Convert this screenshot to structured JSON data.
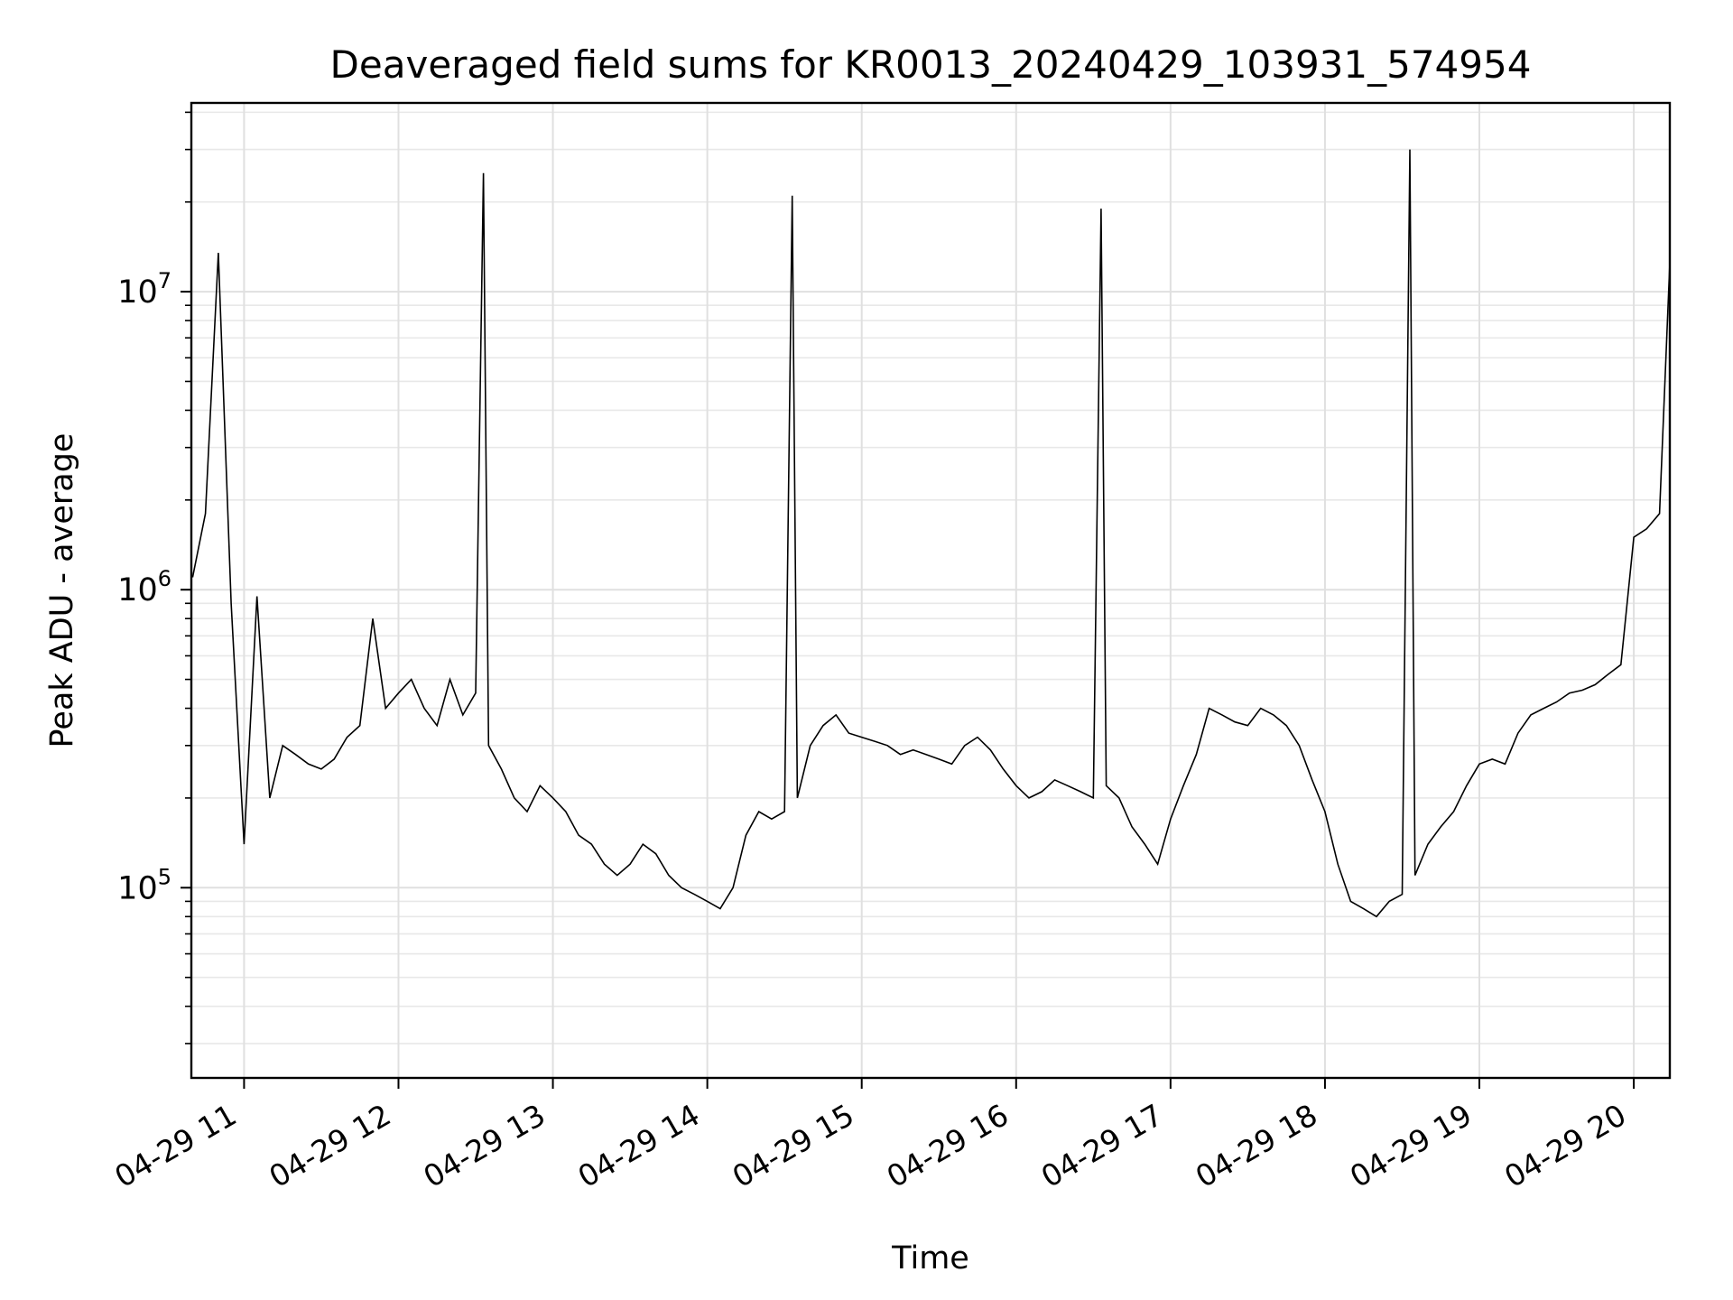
{
  "chart_data": {
    "type": "line",
    "title": "Deaveraged field sums for KR0013_20240429_103931_574954",
    "xlabel": "Time",
    "ylabel": "Peak ADU - average",
    "yscale": "log",
    "ylim": [
      23000,
      43000000
    ],
    "xlim": [
      "04-29 10:39:31",
      "04-29 20:14:00"
    ],
    "grid": true,
    "line_color": "#000000",
    "x_ticks": [
      "04-29 11",
      "04-29 12",
      "04-29 13",
      "04-29 14",
      "04-29 15",
      "04-29 16",
      "04-29 17",
      "04-29 18",
      "04-29 19",
      "04-29 20"
    ],
    "y_ticks": [
      {
        "base": "10",
        "exp": "5",
        "value": 100000
      },
      {
        "base": "10",
        "exp": "6",
        "value": 1000000
      },
      {
        "base": "10",
        "exp": "7",
        "value": 10000000
      }
    ],
    "series": [
      {
        "x": [
          "04-29 10:40",
          "04-29 10:45",
          "04-29 10:50",
          "04-29 10:55",
          "04-29 11:00",
          "04-29 11:05",
          "04-29 11:10",
          "04-29 11:15",
          "04-29 11:20",
          "04-29 11:25",
          "04-29 11:30",
          "04-29 11:35",
          "04-29 11:40",
          "04-29 11:45",
          "04-29 11:50",
          "04-29 11:55",
          "04-29 12:00",
          "04-29 12:05",
          "04-29 12:10",
          "04-29 12:15",
          "04-29 12:20",
          "04-29 12:25",
          "04-29 12:30",
          "04-29 12:33",
          "04-29 12:35",
          "04-29 12:40",
          "04-29 12:45",
          "04-29 12:50",
          "04-29 12:55",
          "04-29 13:00",
          "04-29 13:05",
          "04-29 13:10",
          "04-29 13:15",
          "04-29 13:20",
          "04-29 13:25",
          "04-29 13:30",
          "04-29 13:35",
          "04-29 13:40",
          "04-29 13:45",
          "04-29 13:50",
          "04-29 13:55",
          "04-29 14:00",
          "04-29 14:05",
          "04-29 14:10",
          "04-29 14:15",
          "04-29 14:20",
          "04-29 14:25",
          "04-29 14:30",
          "04-29 14:33",
          "04-29 14:35",
          "04-29 14:40",
          "04-29 14:45",
          "04-29 14:50",
          "04-29 14:55",
          "04-29 15:00",
          "04-29 15:05",
          "04-29 15:10",
          "04-29 15:15",
          "04-29 15:20",
          "04-29 15:25",
          "04-29 15:30",
          "04-29 15:35",
          "04-29 15:40",
          "04-29 15:45",
          "04-29 15:50",
          "04-29 15:55",
          "04-29 16:00",
          "04-29 16:05",
          "04-29 16:10",
          "04-29 16:15",
          "04-29 16:20",
          "04-29 16:25",
          "04-29 16:30",
          "04-29 16:33",
          "04-29 16:35",
          "04-29 16:40",
          "04-29 16:45",
          "04-29 16:50",
          "04-29 16:55",
          "04-29 17:00",
          "04-29 17:05",
          "04-29 17:10",
          "04-29 17:15",
          "04-29 17:20",
          "04-29 17:25",
          "04-29 17:30",
          "04-29 17:35",
          "04-29 17:40",
          "04-29 17:45",
          "04-29 17:50",
          "04-29 17:55",
          "04-29 18:00",
          "04-29 18:05",
          "04-29 18:10",
          "04-29 18:15",
          "04-29 18:20",
          "04-29 18:25",
          "04-29 18:30",
          "04-29 18:33",
          "04-29 18:35",
          "04-29 18:40",
          "04-29 18:45",
          "04-29 18:50",
          "04-29 18:55",
          "04-29 19:00",
          "04-29 19:05",
          "04-29 19:10",
          "04-29 19:15",
          "04-29 19:20",
          "04-29 19:25",
          "04-29 19:30",
          "04-29 19:35",
          "04-29 19:40",
          "04-29 19:45",
          "04-29 19:50",
          "04-29 19:55",
          "04-29 20:00",
          "04-29 20:05",
          "04-29 20:10",
          "04-29 20:14"
        ],
        "y": [
          1100000,
          1800000,
          13500000,
          900000,
          140000,
          950000,
          200000,
          300000,
          280000,
          260000,
          250000,
          270000,
          320000,
          350000,
          800000,
          400000,
          450000,
          500000,
          400000,
          350000,
          500000,
          380000,
          450000,
          25000000,
          300000,
          250000,
          200000,
          180000,
          220000,
          200000,
          180000,
          150000,
          140000,
          120000,
          110000,
          120000,
          140000,
          130000,
          110000,
          100000,
          95000,
          90000,
          85000,
          100000,
          150000,
          180000,
          170000,
          180000,
          21000000,
          200000,
          300000,
          350000,
          380000,
          330000,
          320000,
          310000,
          300000,
          280000,
          290000,
          280000,
          270000,
          260000,
          300000,
          320000,
          290000,
          250000,
          220000,
          200000,
          210000,
          230000,
          220000,
          210000,
          200000,
          19000000,
          220000,
          200000,
          160000,
          140000,
          120000,
          170000,
          220000,
          280000,
          400000,
          380000,
          360000,
          350000,
          400000,
          380000,
          350000,
          300000,
          230000,
          180000,
          120000,
          90000,
          85000,
          80000,
          90000,
          95000,
          30000000,
          110000,
          140000,
          160000,
          180000,
          220000,
          260000,
          270000,
          260000,
          330000,
          380000,
          400000,
          420000,
          450000,
          460000,
          480000,
          520000,
          560000,
          1500000,
          1600000,
          1800000,
          12500000
        ]
      }
    ]
  }
}
